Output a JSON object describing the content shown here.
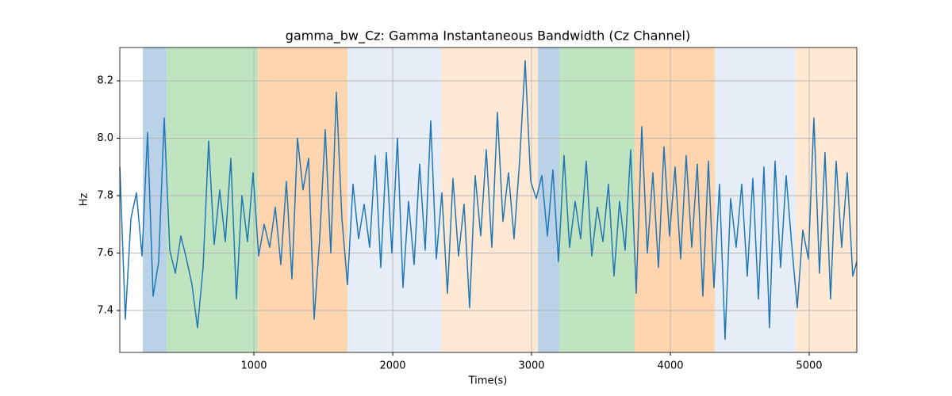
{
  "chart_data": {
    "type": "line",
    "title": "gamma_bw_Cz: Gamma Instantaneous Bandwidth (Cz Channel)",
    "xlabel": "Time(s)",
    "ylabel": "Hz",
    "xlim": [
      34,
      5343
    ],
    "ylim": [
      7.254,
      8.316
    ],
    "xticks": [
      1000,
      2000,
      3000,
      4000,
      5000
    ],
    "yticks": [
      7.4,
      7.6,
      7.8,
      {
        "value": 8,
        "label": "8.0"
      },
      8.2
    ],
    "grid": true,
    "spans": [
      {
        "start": 200,
        "end": 371,
        "color": "#b9d2e7"
      },
      {
        "start": 371,
        "end": 1029,
        "color": "#c0e3c0"
      },
      {
        "start": 1029,
        "end": 1674,
        "color": "#ffd5b0"
      },
      {
        "start": 1674,
        "end": 2349,
        "color": "#e6edf7"
      },
      {
        "start": 2349,
        "end": 3046,
        "color": "#ffe8d4"
      },
      {
        "start": 3046,
        "end": 3200,
        "color": "#b9d2e7"
      },
      {
        "start": 3200,
        "end": 3743,
        "color": "#c0e3c0"
      },
      {
        "start": 3743,
        "end": 4320,
        "color": "#ffd5b0"
      },
      {
        "start": 4320,
        "end": 4903,
        "color": "#e6edf7"
      },
      {
        "start": 4903,
        "end": 5343,
        "color": "#ffe8d4"
      }
    ],
    "series": [
      {
        "color": "#1f77b4",
        "x": [
          34,
          74,
          114,
          154,
          194,
          234,
          274,
          314,
          354,
          394,
          434,
          474,
          514,
          554,
          594,
          634,
          674,
          714,
          754,
          794,
          834,
          874,
          914,
          954,
          994,
          1034,
          1074,
          1114,
          1154,
          1194,
          1234,
          1274,
          1314,
          1354,
          1394,
          1434,
          1474,
          1514,
          1554,
          1594,
          1634,
          1674,
          1714,
          1754,
          1794,
          1834,
          1874,
          1914,
          1954,
          1994,
          2034,
          2074,
          2114,
          2154,
          2194,
          2234,
          2274,
          2314,
          2354,
          2394,
          2434,
          2474,
          2514,
          2554,
          2594,
          2634,
          2674,
          2714,
          2754,
          2794,
          2834,
          2874,
          2914,
          2954,
          2994,
          3034,
          3074,
          3114,
          3154,
          3194,
          3234,
          3274,
          3314,
          3354,
          3394,
          3434,
          3474,
          3514,
          3554,
          3594,
          3634,
          3674,
          3714,
          3754,
          3794,
          3834,
          3874,
          3914,
          3954,
          3994,
          4034,
          4074,
          4114,
          4154,
          4194,
          4234,
          4274,
          4314,
          4354,
          4394,
          4434,
          4474,
          4514,
          4554,
          4594,
          4634,
          4674,
          4714,
          4754,
          4794,
          4834,
          4874,
          4914,
          4954,
          4994,
          5034,
          5074,
          5114,
          5154,
          5194,
          5234,
          5274,
          5314,
          5343
        ],
        "values": [
          7.9,
          7.37,
          7.72,
          7.81,
          7.59,
          8.02,
          7.45,
          7.57,
          8.07,
          7.61,
          7.53,
          7.66,
          7.58,
          7.49,
          7.34,
          7.55,
          7.99,
          7.63,
          7.82,
          7.64,
          7.93,
          7.44,
          7.8,
          7.64,
          7.88,
          7.59,
          7.7,
          7.62,
          7.76,
          7.56,
          7.85,
          7.51,
          8.0,
          7.82,
          7.93,
          7.37,
          7.65,
          8.03,
          7.6,
          8.16,
          7.72,
          7.49,
          7.84,
          7.65,
          7.77,
          7.62,
          7.94,
          7.55,
          7.95,
          7.6,
          8.0,
          7.48,
          7.78,
          7.56,
          7.91,
          7.61,
          8.06,
          7.58,
          7.81,
          7.46,
          7.86,
          7.59,
          7.77,
          7.41,
          7.87,
          7.66,
          7.96,
          7.62,
          8.09,
          7.71,
          7.88,
          7.65,
          7.92,
          8.27,
          7.85,
          7.79,
          7.87,
          7.66,
          7.89,
          7.57,
          7.94,
          7.62,
          7.78,
          7.65,
          7.92,
          7.59,
          7.76,
          7.64,
          7.84,
          7.52,
          7.78,
          7.61,
          7.96,
          7.46,
          8.04,
          7.6,
          7.88,
          7.55,
          7.97,
          7.66,
          7.9,
          7.58,
          7.94,
          7.62,
          7.91,
          7.45,
          7.92,
          7.48,
          7.84,
          7.3,
          7.79,
          7.62,
          7.84,
          7.52,
          7.86,
          7.44,
          7.9,
          7.34,
          7.92,
          7.55,
          7.87,
          7.63,
          7.41,
          7.68,
          7.58,
          8.07,
          7.53,
          7.95,
          7.44,
          7.92,
          7.62,
          7.88,
          7.52,
          7.57
        ]
      }
    ]
  }
}
